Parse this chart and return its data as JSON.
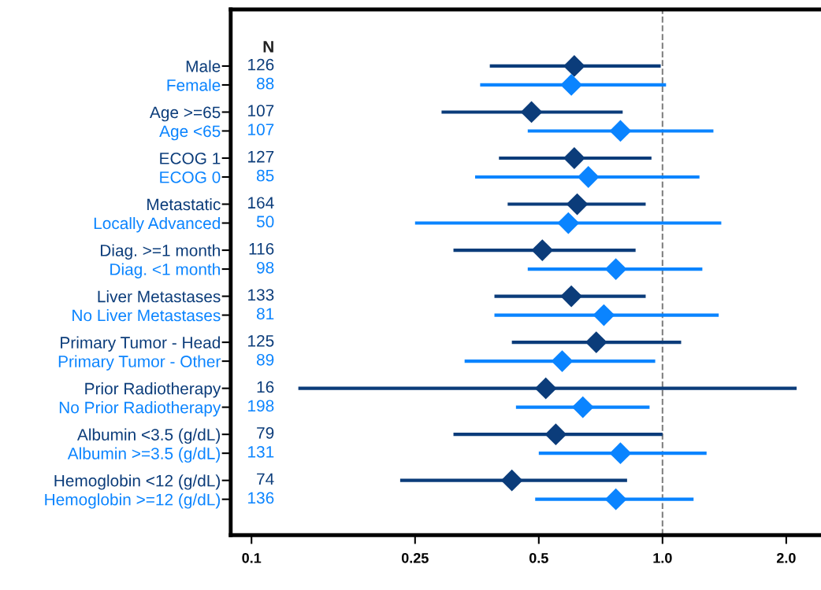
{
  "chart_data": {
    "type": "scatter",
    "orientation": "horizontal",
    "marker": "diamond",
    "log": "x",
    "categories": [
      "Male",
      "Female",
      "Age >=65",
      "Age <65",
      "ECOG 1",
      "ECOG 0",
      "Metastatic",
      "Locally Advanced",
      "Diag. >=1 month",
      "Diag. <1 month",
      "Liver Metastases",
      "No Liver Metastases",
      "Primary Tumor - Head",
      "Primary Tumor - Other",
      "Prior Radiotherapy",
      "No Prior Radiotherapy",
      "Albumin <3.5 (g/dL)",
      "Albumin >=3.5 (g/dL)",
      "Hemoglobin <12 (g/dL)",
      "Hemoglobin >=12 (g/dL)"
    ],
    "values": [
      0.61,
      0.6,
      0.48,
      0.79,
      0.61,
      0.66,
      0.62,
      0.59,
      0.51,
      0.77,
      0.6,
      0.72,
      0.69,
      0.57,
      0.52,
      0.64,
      0.55,
      0.79,
      0.43,
      0.77
    ],
    "errors": [
      [
        0.38,
        0.99
      ],
      [
        0.36,
        1.02
      ],
      [
        0.29,
        0.8
      ],
      [
        0.47,
        1.33
      ],
      [
        0.4,
        0.94
      ],
      [
        0.35,
        1.23
      ],
      [
        0.42,
        0.91
      ],
      [
        0.25,
        1.39
      ],
      [
        0.31,
        0.86
      ],
      [
        0.47,
        1.25
      ],
      [
        0.39,
        0.91
      ],
      [
        0.39,
        1.37
      ],
      [
        0.43,
        1.11
      ],
      [
        0.33,
        0.96
      ],
      [
        0.13,
        2.12
      ],
      [
        0.44,
        0.93
      ],
      [
        0.31,
        1.0
      ],
      [
        0.5,
        1.28
      ],
      [
        0.23,
        0.82
      ],
      [
        0.49,
        1.19
      ]
    ],
    "colors": [
      "#0b3c7a",
      "#0a84ff",
      "#0b3c7a",
      "#0a84ff",
      "#0b3c7a",
      "#0a84ff",
      "#0b3c7a",
      "#0a84ff",
      "#0b3c7a",
      "#0a84ff",
      "#0b3c7a",
      "#0a84ff",
      "#0b3c7a",
      "#0a84ff",
      "#0b3c7a",
      "#0a84ff",
      "#0b3c7a",
      "#0a84ff",
      "#0b3c7a",
      "#0a84ff"
    ],
    "xlim": [
      0.089,
      2.43
    ],
    "xticks": [
      0.1,
      0.25,
      0.5,
      {
        "value": 1,
        "label": "1.0"
      },
      {
        "value": 2,
        "label": "2.0"
      }
    ],
    "ref_lines": [
      {
        "axis": "x",
        "value": 1,
        "color": "#808080",
        "line_style": "dashed"
      }
    ],
    "annotations": [
      "N",
      "126",
      "88",
      "107",
      "107",
      "127",
      "85",
      "164",
      "50",
      "116",
      "98",
      "133",
      "81",
      "125",
      "89",
      "16",
      "198",
      "79",
      "131",
      "74",
      "136"
    ],
    "grid": false,
    "legend": false
  }
}
